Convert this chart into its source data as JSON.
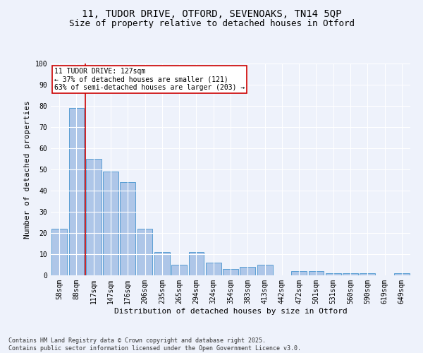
{
  "title_line1": "11, TUDOR DRIVE, OTFORD, SEVENOAKS, TN14 5QP",
  "title_line2": "Size of property relative to detached houses in Otford",
  "xlabel": "Distribution of detached houses by size in Otford",
  "ylabel": "Number of detached properties",
  "categories": [
    "58sqm",
    "88sqm",
    "117sqm",
    "147sqm",
    "176sqm",
    "206sqm",
    "235sqm",
    "265sqm",
    "294sqm",
    "324sqm",
    "354sqm",
    "383sqm",
    "413sqm",
    "442sqm",
    "472sqm",
    "501sqm",
    "531sqm",
    "560sqm",
    "590sqm",
    "619sqm",
    "649sqm"
  ],
  "values": [
    22,
    79,
    55,
    49,
    44,
    22,
    11,
    5,
    11,
    6,
    3,
    4,
    5,
    0,
    2,
    2,
    1,
    1,
    1,
    0,
    1
  ],
  "bar_color": "#aec6e8",
  "bar_edge_color": "#5a9fd4",
  "annotation_text": "11 TUDOR DRIVE: 127sqm\n← 37% of detached houses are smaller (121)\n63% of semi-detached houses are larger (203) →",
  "annotation_box_color": "#ffffff",
  "annotation_box_edge_color": "#cc0000",
  "vline_color": "#cc0000",
  "vline_pos": 1.5,
  "footnote": "Contains HM Land Registry data © Crown copyright and database right 2025.\nContains public sector information licensed under the Open Government Licence v3.0.",
  "ylim": [
    0,
    100
  ],
  "background_color": "#eef2fb",
  "grid_color": "#ffffff",
  "title_fontsize": 10,
  "subtitle_fontsize": 9,
  "axis_label_fontsize": 8,
  "tick_fontsize": 7,
  "annotation_fontsize": 7,
  "footnote_fontsize": 6
}
